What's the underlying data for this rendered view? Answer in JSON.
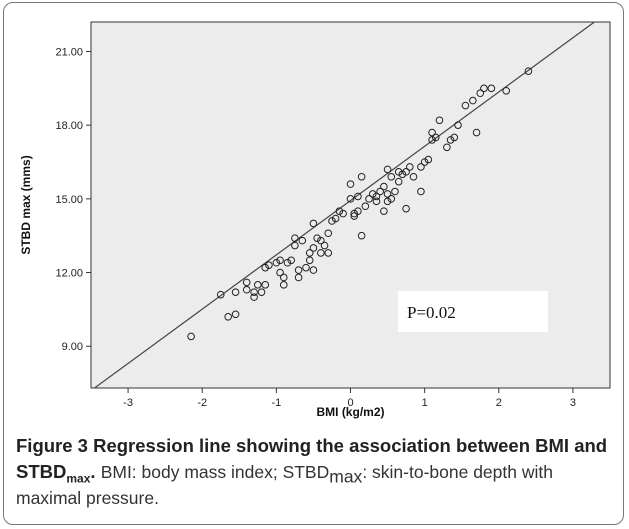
{
  "chart_data": {
    "type": "scatter",
    "xlabel": "BMI (kg/m2)",
    "ylabel": "STBD max (mms)",
    "xlim": [
      -3.5,
      3.5
    ],
    "ylim": [
      7.3,
      22.2
    ],
    "xticks": [
      "-3",
      "-2",
      "-1",
      "0",
      "1",
      "2",
      "3"
    ],
    "xtick_values": [
      -3,
      -2,
      -1,
      0,
      1,
      2,
      3
    ],
    "yticks": [
      "9.00",
      "12.00",
      "15.00",
      "18.00",
      "21.00"
    ],
    "ytick_values": [
      9,
      12,
      15,
      18,
      21
    ],
    "grid": false,
    "background": "#ececec",
    "point_color": "#222222",
    "regression_line": {
      "slope": 2.21,
      "intercept": 14.93
    },
    "annotation": "P=0.02",
    "points": [
      [
        -2.15,
        9.4
      ],
      [
        -1.75,
        11.1
      ],
      [
        -1.65,
        10.2
      ],
      [
        -1.55,
        10.3
      ],
      [
        -1.55,
        11.2
      ],
      [
        -1.4,
        11.3
      ],
      [
        -1.4,
        11.6
      ],
      [
        -1.3,
        11.0
      ],
      [
        -1.3,
        11.2
      ],
      [
        -1.25,
        11.5
      ],
      [
        -1.2,
        11.2
      ],
      [
        -1.15,
        12.2
      ],
      [
        -1.15,
        11.5
      ],
      [
        -1.1,
        12.3
      ],
      [
        -1.0,
        12.4
      ],
      [
        -0.95,
        12.0
      ],
      [
        -0.95,
        12.5
      ],
      [
        -0.9,
        11.8
      ],
      [
        -0.9,
        11.5
      ],
      [
        -0.85,
        12.4
      ],
      [
        -0.8,
        12.5
      ],
      [
        -0.75,
        13.1
      ],
      [
        -0.75,
        13.4
      ],
      [
        -0.7,
        12.1
      ],
      [
        -0.7,
        11.8
      ],
      [
        -0.65,
        13.3
      ],
      [
        -0.6,
        12.2
      ],
      [
        -0.55,
        12.5
      ],
      [
        -0.55,
        12.8
      ],
      [
        -0.5,
        12.1
      ],
      [
        -0.5,
        13.0
      ],
      [
        -0.5,
        14.0
      ],
      [
        -0.45,
        13.4
      ],
      [
        -0.4,
        13.3
      ],
      [
        -0.4,
        12.8
      ],
      [
        -0.35,
        13.1
      ],
      [
        -0.3,
        12.8
      ],
      [
        -0.3,
        13.6
      ],
      [
        -0.25,
        14.1
      ],
      [
        -0.2,
        14.2
      ],
      [
        -0.15,
        14.5
      ],
      [
        -0.1,
        14.4
      ],
      [
        0.0,
        15.0
      ],
      [
        0.0,
        15.6
      ],
      [
        0.05,
        14.3
      ],
      [
        0.05,
        14.4
      ],
      [
        0.1,
        14.5
      ],
      [
        0.1,
        15.1
      ],
      [
        0.15,
        13.5
      ],
      [
        0.15,
        15.9
      ],
      [
        0.2,
        14.7
      ],
      [
        0.25,
        15.0
      ],
      [
        0.3,
        15.2
      ],
      [
        0.35,
        14.9
      ],
      [
        0.35,
        15.1
      ],
      [
        0.4,
        15.3
      ],
      [
        0.45,
        14.5
      ],
      [
        0.45,
        15.5
      ],
      [
        0.5,
        14.9
      ],
      [
        0.5,
        15.2
      ],
      [
        0.5,
        16.2
      ],
      [
        0.55,
        15.0
      ],
      [
        0.55,
        15.9
      ],
      [
        0.6,
        15.3
      ],
      [
        0.65,
        15.7
      ],
      [
        0.65,
        16.1
      ],
      [
        0.7,
        16.0
      ],
      [
        0.75,
        14.6
      ],
      [
        0.75,
        16.1
      ],
      [
        0.8,
        16.3
      ],
      [
        0.85,
        15.9
      ],
      [
        0.95,
        16.3
      ],
      [
        0.95,
        15.3
      ],
      [
        1.0,
        16.5
      ],
      [
        1.05,
        16.6
      ],
      [
        1.1,
        17.4
      ],
      [
        1.1,
        17.7
      ],
      [
        1.15,
        17.5
      ],
      [
        1.2,
        18.2
      ],
      [
        1.3,
        17.1
      ],
      [
        1.35,
        17.4
      ],
      [
        1.4,
        17.5
      ],
      [
        1.45,
        18.0
      ],
      [
        1.55,
        18.8
      ],
      [
        1.65,
        19.0
      ],
      [
        1.7,
        17.7
      ],
      [
        1.75,
        19.3
      ],
      [
        1.8,
        19.5
      ],
      [
        1.9,
        19.5
      ],
      [
        2.1,
        19.4
      ],
      [
        2.4,
        20.2
      ]
    ]
  },
  "caption": {
    "label": "Figure 3",
    "title": "Regression line showing the association between BMI and STBD",
    "title_sub": "max",
    "title_end": ".",
    "body_part1": "BMI: body mass index; STBD",
    "body_sub": "max",
    "body_part2": ": skin-to-bone depth with maximal pressure."
  }
}
